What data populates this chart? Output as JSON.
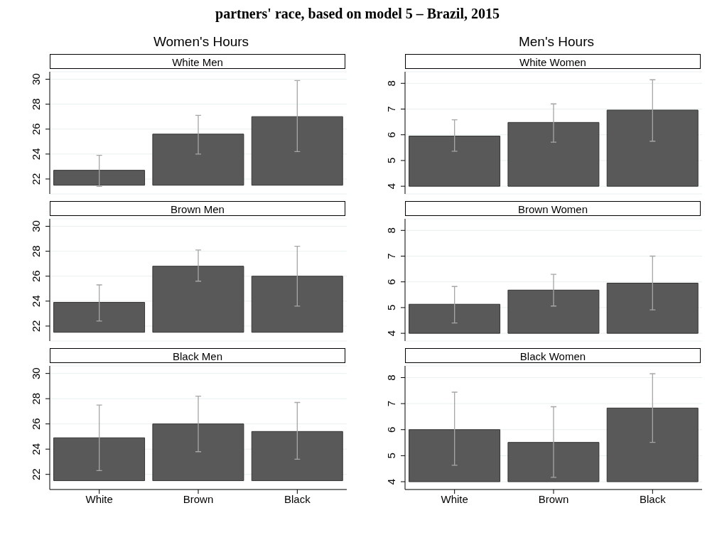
{
  "chart_data": [
    {
      "type": "bar",
      "title": "Women's Hours",
      "subtitle": "White Men",
      "annotations": [
        "partners' race, based on model 5 – Brazil, 2015"
      ],
      "categories": [
        null,
        null,
        null
      ],
      "base": [
        21.5,
        21.5,
        21.5
      ],
      "values": [
        1.2,
        4.1,
        5.5
      ],
      "errors": [
        [
          21.4,
          23.9
        ],
        [
          24.0,
          27.1
        ],
        [
          24.2,
          29.9
        ]
      ],
      "color": "#595959",
      "ylim": [
        20.8,
        30.6
      ],
      "yticks": [
        22,
        24,
        26,
        28,
        30
      ],
      "grid": "y",
      "tick_labels": "y"
    },
    {
      "type": "bar",
      "title": "Men's Hours",
      "subtitle": "White Women",
      "categories": [
        null,
        null,
        null
      ],
      "base": [
        4,
        4,
        4
      ],
      "values": [
        1.95,
        2.48,
        2.96
      ],
      "errors": [
        [
          5.36,
          6.58
        ],
        [
          5.71,
          7.2
        ],
        [
          5.75,
          8.14
        ]
      ],
      "color": "#595959",
      "ylim": [
        3.7,
        8.45
      ],
      "yticks": [
        4,
        5,
        6,
        7,
        8
      ],
      "grid": "y",
      "tick_labels": "y"
    },
    {
      "type": "bar",
      "subtitle": "Brown Men",
      "categories": [
        null,
        null,
        null
      ],
      "base": [
        21.5,
        21.5,
        21.5
      ],
      "values": [
        2.4,
        5.3,
        4.5
      ],
      "errors": [
        [
          22.4,
          25.3
        ],
        [
          25.6,
          28.1
        ],
        [
          23.6,
          28.4
        ]
      ],
      "color": "#595959",
      "ylim": [
        20.8,
        30.6
      ],
      "yticks": [
        22,
        24,
        26,
        28,
        30
      ],
      "grid": "y",
      "tick_labels": "y"
    },
    {
      "type": "bar",
      "subtitle": "Brown Women",
      "categories": [
        null,
        null,
        null
      ],
      "base": [
        4,
        4,
        4
      ],
      "values": [
        1.13,
        1.68,
        1.95
      ],
      "errors": [
        [
          4.4,
          5.82
        ],
        [
          5.06,
          6.29
        ],
        [
          4.91,
          7.0
        ]
      ],
      "color": "#595959",
      "ylim": [
        3.7,
        8.45
      ],
      "yticks": [
        4,
        5,
        6,
        7,
        8
      ],
      "grid": "y",
      "tick_labels": "y"
    },
    {
      "type": "bar",
      "subtitle": "Black Men",
      "categories": [
        "White",
        "Brown",
        "Black"
      ],
      "base": [
        21.5,
        21.5,
        21.5
      ],
      "values": [
        3.4,
        4.5,
        3.9
      ],
      "errors": [
        [
          22.3,
          27.5
        ],
        [
          23.8,
          28.2
        ],
        [
          23.2,
          27.7
        ]
      ],
      "color": "#595959",
      "ylim": [
        20.8,
        30.6
      ],
      "yticks": [
        22,
        24,
        26,
        28,
        30
      ],
      "grid": "y"
    },
    {
      "type": "bar",
      "subtitle": "Black Women",
      "categories": [
        "White",
        "Brown",
        "Black"
      ],
      "base": [
        4,
        4,
        4
      ],
      "values": [
        2.0,
        1.51,
        2.83
      ],
      "errors": [
        [
          4.63,
          7.44
        ],
        [
          4.17,
          6.88
        ],
        [
          5.51,
          8.15
        ]
      ],
      "color": "#595959",
      "ylim": [
        3.7,
        8.45
      ],
      "yticks": [
        4,
        5,
        6,
        7,
        8
      ],
      "grid": "y"
    }
  ]
}
